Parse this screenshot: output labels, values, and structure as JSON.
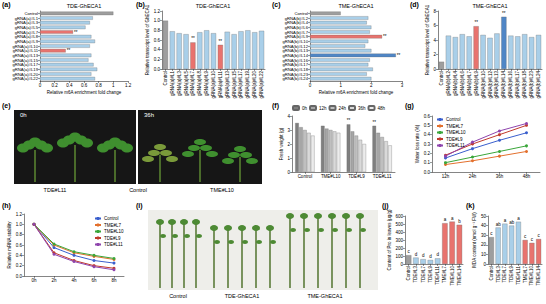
{
  "chart_data": [
    {
      "panel": "(a)",
      "type": "bar",
      "orientation": "horizontal",
      "title": "TDE-GhECA1",
      "xlabel": "Relative m6A enrichment fold change",
      "categories": [
        "Control",
        "gRNA(a)#L1",
        "gRNA(a)#L3",
        "gRNA(a)#L5",
        "gRNA(a)#L7",
        "gRNA(a)#L8",
        "gRNA(a)#L9",
        "gRNA(a)#L10",
        "gRNA(a)#L11",
        "gRNA(a)#L13",
        "gRNA(a)#L15",
        "gRNA(a)#L17",
        "gRNA(a)#L19",
        "gRNA(a)#L20",
        "gRNA(a)#L22"
      ],
      "values": [
        1,
        0.72,
        0.68,
        0.62,
        0.45,
        0.7,
        0.75,
        0.68,
        0.35,
        0.7,
        0.66,
        0.73,
        0.78,
        0.7,
        0.75
      ],
      "colors": [
        "#9e9e9e",
        "#a9cfe9",
        "#a9cfe9",
        "#a9cfe9",
        "#e8736e",
        "#a9cfe9",
        "#a9cfe9",
        "#a9cfe9",
        "#e8736e",
        "#a9cfe9",
        "#a9cfe9",
        "#a9cfe9",
        "#a9cfe9",
        "#a9cfe9",
        "#a9cfe9"
      ],
      "xlim": [
        0,
        1.2
      ],
      "xticks": [
        0,
        0.2,
        0.4,
        0.6,
        0.8,
        1,
        1.2
      ],
      "annotations": [
        {
          "category": "gRNA(a)#L7",
          "text": "**"
        },
        {
          "category": "gRNA(a)#L11",
          "text": "**"
        }
      ]
    },
    {
      "panel": "(b)",
      "type": "bar",
      "title": "TDE-GhECA1",
      "ylabel": "Relative transcript level of GhECA1",
      "categories": [
        "Control",
        "gRNA(a)#L1",
        "gRNA(a)#L3",
        "gRNA(a)#L5",
        "gRNA(a)#L7",
        "gRNA(a)#L8",
        "gRNA(a)#L9",
        "gRNA(a)#L10",
        "gRNA(a)#L11",
        "gRNA(a)#L13",
        "gRNA(a)#L15",
        "gRNA(a)#L17",
        "gRNA(a)#L19",
        "gRNA(a)#L20",
        "gRNA(a)#L22"
      ],
      "values": [
        1,
        0.78,
        0.74,
        0.72,
        0.55,
        0.76,
        0.8,
        0.74,
        0.5,
        0.77,
        0.72,
        0.78,
        0.8,
        0.76,
        0.79
      ],
      "colors": [
        "#9e9e9e",
        "#a9cfe9",
        "#a9cfe9",
        "#a9cfe9",
        "#e8736e",
        "#a9cfe9",
        "#a9cfe9",
        "#a9cfe9",
        "#e8736e",
        "#a9cfe9",
        "#a9cfe9",
        "#a9cfe9",
        "#a9cfe9",
        "#a9cfe9",
        "#a9cfe9"
      ],
      "ylim": [
        0,
        1.2
      ],
      "yticks": [
        {
          "value": 0,
          "label": "0.0"
        },
        0.2,
        0.4,
        0.6,
        0.8,
        {
          "value": 1,
          "label": "1.0"
        },
        1.2
      ],
      "annotations": [
        {
          "category": "gRNA(a)#L7",
          "text": "**"
        },
        {
          "category": "gRNA(a)#L11",
          "text": "**"
        }
      ]
    },
    {
      "panel": "(c)",
      "type": "bar",
      "orientation": "horizontal",
      "title": "TME-GhECA1",
      "xlabel": "Relative m6A enrichment fold change",
      "categories": [
        "Control",
        "gRNA(b)#L2",
        "gRNA(b)#L4",
        "gRNA(b)#L6",
        "gRNA(b)#L7",
        "gRNA(b)#L9",
        "gRNA(b)#L10",
        "gRNA(b)#L12",
        "gRNA(b)#L13",
        "gRNA(b)#L14",
        "gRNA(b)#L16",
        "gRNA(b)#L17",
        "gRNA(b)#L18",
        "gRNA(b)#L23",
        "gRNA(b)#L24"
      ],
      "values": [
        1,
        1.9,
        1.85,
        2.0,
        1.95,
        2.35,
        1.9,
        1.8,
        2.0,
        2.8,
        1.95,
        1.9,
        2.05,
        1.85,
        2.0
      ],
      "colors": [
        "#9e9e9e",
        "#a9cfe9",
        "#a9cfe9",
        "#a9cfe9",
        "#a9cfe9",
        "#e8736e",
        "#a9cfe9",
        "#a9cfe9",
        "#a9cfe9",
        "#4f86c6",
        "#a9cfe9",
        "#a9cfe9",
        "#a9cfe9",
        "#a9cfe9",
        "#a9cfe9"
      ],
      "xlim": [
        0,
        3
      ],
      "xticks": [
        0,
        1,
        2,
        3
      ],
      "annotations": [
        {
          "category": "gRNA(b)#L9",
          "text": "**"
        },
        {
          "category": "gRNA(b)#L14",
          "text": "**"
        }
      ]
    },
    {
      "panel": "(d)",
      "type": "bar",
      "title": "TME-GhECA1",
      "ylabel": "Relative transcript level of GhECA1",
      "categories": [
        "Control",
        "gRNA(b)#L2",
        "gRNA(b)#L4",
        "gRNA(b)#L6",
        "gRNA(b)#L7",
        "gRNA(b)#L9",
        "gRNA(b)#L10",
        "gRNA(b)#L12",
        "gRNA(b)#L13",
        "gRNA(b)#L14",
        "gRNA(b)#L16",
        "gRNA(b)#L17",
        "gRNA(b)#L18",
        "gRNA(b)#L23",
        "gRNA(b)#L24"
      ],
      "values": [
        1,
        4.6,
        4.4,
        4.8,
        4.5,
        5.9,
        4.7,
        4.3,
        4.9,
        7.2,
        4.6,
        4.5,
        4.8,
        4.4,
        4.7
      ],
      "colors": [
        "#9e9e9e",
        "#a9cfe9",
        "#a9cfe9",
        "#a9cfe9",
        "#a9cfe9",
        "#e8736e",
        "#a9cfe9",
        "#a9cfe9",
        "#a9cfe9",
        "#4f86c6",
        "#a9cfe9",
        "#a9cfe9",
        "#a9cfe9",
        "#a9cfe9",
        "#a9cfe9"
      ],
      "ylim": [
        0,
        8
      ],
      "yticks": [
        0,
        2,
        4,
        6,
        8
      ],
      "annotations": [
        {
          "category": "gRNA(b)#L9",
          "text": "**"
        },
        {
          "category": "gRNA(b)#L14",
          "text": "**"
        }
      ]
    },
    {
      "panel": "(f)",
      "type": "bar",
      "ylabel": "Fresh weight (g)",
      "legend": "top",
      "categories": [
        "Control",
        "TME#L10",
        "TDE#L9",
        "TDE#L11"
      ],
      "series": [
        {
          "name": "0h",
          "color": "#7f7f7f",
          "values": [
            3.5,
            3.3,
            3.4,
            3.3
          ]
        },
        {
          "name": "12h",
          "color": "#a6a6a6",
          "values": [
            3.2,
            3.1,
            2.9,
            2.8
          ]
        },
        {
          "name": "24h",
          "color": "#bfbfbf",
          "values": [
            3.0,
            3.0,
            2.6,
            2.5
          ]
        },
        {
          "name": "36h",
          "color": "#d9d9d9",
          "values": [
            2.8,
            2.9,
            2.3,
            2.2
          ]
        },
        {
          "name": "48h",
          "color": "#ececec",
          "values": [
            2.6,
            2.8,
            2.0,
            1.9
          ]
        }
      ],
      "ylim": [
        0,
        4
      ],
      "yticks": [
        0,
        1,
        2,
        3,
        4
      ],
      "annotations": [
        {
          "category": "TDE#L9",
          "series": "0h",
          "text": "**"
        },
        {
          "category": "TDE#L11",
          "series": "0h",
          "text": "**"
        }
      ]
    },
    {
      "panel": "(g)",
      "type": "line",
      "ylabel": "Water loss rate (%)",
      "legend": "upper left",
      "marker": "circle",
      "line_style": "solid",
      "categories": [
        "12h",
        "24h",
        "36h",
        "48h"
      ],
      "series": [
        {
          "name": "Control",
          "color": "#3a5fcd",
          "values": [
            0.15,
            0.25,
            0.34,
            0.42
          ]
        },
        {
          "name": "TME#L7",
          "color": "#e3702d",
          "values": [
            0.08,
            0.12,
            0.17,
            0.22
          ]
        },
        {
          "name": "TME#L10",
          "color": "#3aa63a",
          "values": [
            0.1,
            0.16,
            0.22,
            0.28
          ]
        },
        {
          "name": "TDE#L9",
          "color": "#c0392b",
          "values": [
            0.18,
            0.3,
            0.4,
            0.5
          ]
        },
        {
          "name": "TDE#L11",
          "color": "#8e44ad",
          "values": [
            0.17,
            0.32,
            0.44,
            0.52
          ]
        }
      ],
      "ylim": [
        0,
        0.6
      ],
      "yticks": [
        {
          "value": 0,
          "label": "0.0"
        },
        0.1,
        0.2,
        0.3,
        0.4,
        0.5,
        0.6
      ]
    },
    {
      "panel": "(h)",
      "type": "line",
      "ylabel": "Relative mRNA stability",
      "legend": "upper right",
      "marker": "circle",
      "line_style": "solid",
      "categories": [
        "0h",
        "2h",
        "4h",
        "6h",
        "8h"
      ],
      "series": [
        {
          "name": "Control",
          "color": "#3a5fcd",
          "values": [
            1,
            0.55,
            0.4,
            0.3,
            0.25
          ]
        },
        {
          "name": "TME#L7",
          "color": "#e3702d",
          "values": [
            1,
            0.6,
            0.45,
            0.38,
            0.32
          ]
        },
        {
          "name": "TME#L10",
          "color": "#3aa63a",
          "values": [
            1,
            0.62,
            0.47,
            0.4,
            0.34
          ]
        },
        {
          "name": "TDE#L9",
          "color": "#c0392b",
          "values": [
            1,
            0.45,
            0.3,
            0.2,
            0.15
          ]
        },
        {
          "name": "TDE#L11",
          "color": "#8e44ad",
          "values": [
            1,
            0.42,
            0.28,
            0.18,
            0.12
          ]
        }
      ],
      "ylim": [
        0,
        1.2
      ],
      "yticks": [
        {
          "value": 0,
          "label": "0.0"
        },
        0.2,
        0.4,
        0.6,
        0.8,
        {
          "value": 1,
          "label": "1.0"
        },
        1.2
      ]
    },
    {
      "panel": "(j)",
      "type": "bar",
      "ylabel": "Content of Pro in leaves (μg/g)",
      "categories": [
        "Control",
        "TDE#L3",
        "TDE#L7",
        "TDE#L9",
        "TDE#L11",
        "TME#L7",
        "TME#L10",
        "TME#L14"
      ],
      "values": [
        110,
        80,
        60,
        50,
        70,
        510,
        530,
        490
      ],
      "colors": [
        "#9e9e9e",
        "#a9cfe9",
        "#a9cfe9",
        "#a9cfe9",
        "#a9cfe9",
        "#e8736e",
        "#e8736e",
        "#e8736e"
      ],
      "ylim": [
        0,
        600
      ],
      "yticks": [
        0,
        100,
        200,
        300,
        400,
        500,
        600
      ],
      "annotations": [
        {
          "category": "Control",
          "text": "c"
        },
        {
          "category": "TDE#L3",
          "text": "d"
        },
        {
          "category": "TDE#L7",
          "text": "d"
        },
        {
          "category": "TDE#L9",
          "text": "d"
        },
        {
          "category": "TDE#L11",
          "text": "d"
        },
        {
          "category": "TME#L7",
          "text": "a"
        },
        {
          "category": "TME#L10",
          "text": "a"
        },
        {
          "category": "TME#L14",
          "text": "b"
        }
      ]
    },
    {
      "panel": "(k)",
      "type": "bar",
      "ylabel": "MDA content (nmol g⁻¹ FW)",
      "categories": [
        "Control",
        "TDE#L3",
        "TDE#L7",
        "TDE#L9",
        "TDE#L11",
        "TME#L7",
        "TME#L10",
        "TME#L14"
      ],
      "values": [
        28,
        38,
        42,
        40,
        44,
        25,
        22,
        26
      ],
      "colors": [
        "#9e9e9e",
        "#a9cfe9",
        "#a9cfe9",
        "#a9cfe9",
        "#a9cfe9",
        "#e8736e",
        "#e8736e",
        "#e8736e"
      ],
      "ylim": [
        0,
        50
      ],
      "yticks": [
        0,
        10,
        20,
        30,
        40,
        50
      ],
      "annotations": [
        {
          "category": "Control",
          "text": "c"
        },
        {
          "category": "TDE#L3",
          "text": "ab"
        },
        {
          "category": "TDE#L7",
          "text": "a"
        },
        {
          "category": "TDE#L9",
          "text": "ab"
        },
        {
          "category": "TDE#L11",
          "text": "a"
        },
        {
          "category": "TME#L7",
          "text": "c"
        },
        {
          "category": "TME#L10",
          "text": "c"
        },
        {
          "category": "TME#L14",
          "text": "c"
        }
      ]
    }
  ],
  "photos": [
    {
      "panel": "(e)",
      "labels": [
        "0h",
        "36h",
        "TDE#L11",
        "Control",
        "TME#L10"
      ]
    },
    {
      "panel": "(i)",
      "labels": [
        "Control",
        "TDE-GhECA1",
        "TME-GhECA1"
      ]
    }
  ]
}
